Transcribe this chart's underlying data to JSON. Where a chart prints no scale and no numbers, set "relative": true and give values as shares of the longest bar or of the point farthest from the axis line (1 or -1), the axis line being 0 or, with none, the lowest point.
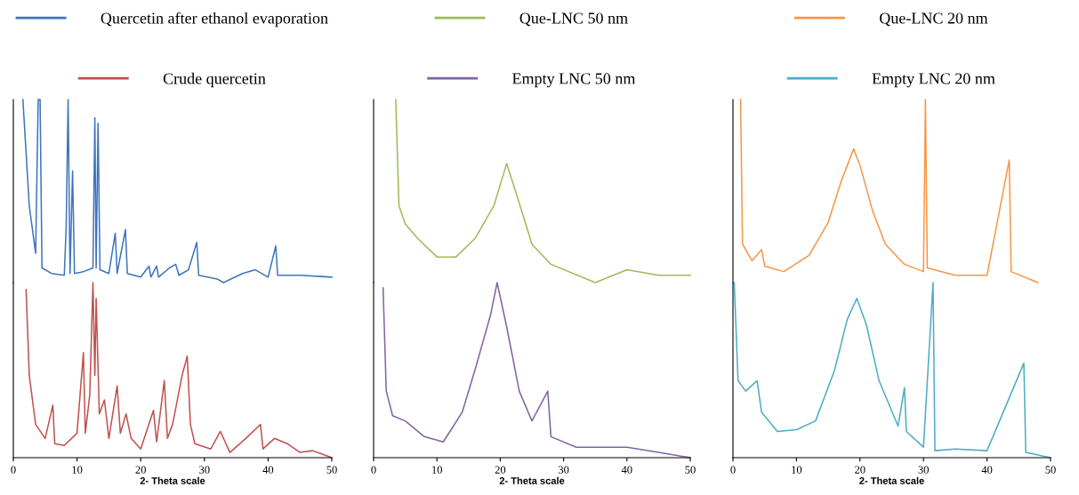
{
  "chart_data": [
    {
      "type": "line",
      "relative": true,
      "xlim": [
        0,
        50
      ],
      "tick_labels": false,
      "legend": "top",
      "grid": false,
      "series": [
        {
          "name": "Quercetin after ethanol evaporation",
          "color": "#3d74bd",
          "x": [
            1.5,
            2.5,
            3.5,
            3.9,
            4.2,
            4.5,
            6,
            8,
            8.3,
            8.6,
            8.9,
            9.3,
            9.6,
            11,
            12.5,
            12.8,
            13.0,
            13.3,
            13.6,
            15,
            16,
            16.3,
            17.6,
            17.9,
            20,
            21.3,
            21.6,
            22.5,
            22.8,
            24.5,
            25.5,
            26,
            27.5,
            28.8,
            29.1,
            32,
            33,
            36,
            38,
            40,
            41.2,
            41.5,
            45,
            50
          ],
          "values": [
            1.0,
            0.42,
            0.16,
            1.0,
            1.0,
            0.08,
            0.05,
            0.04,
            0.31,
            1.0,
            0.05,
            0.61,
            0.05,
            0.06,
            0.08,
            0.9,
            0.08,
            0.87,
            0.07,
            0.05,
            0.27,
            0.05,
            0.29,
            0.05,
            0.03,
            0.09,
            0.03,
            0.09,
            0.03,
            0.08,
            0.1,
            0.04,
            0.07,
            0.22,
            0.04,
            0.02,
            0,
            0.05,
            0.07,
            0.03,
            0.2,
            0.04,
            0.04,
            0.03
          ]
        }
      ]
    },
    {
      "type": "line",
      "relative": true,
      "xlim": [
        0,
        50
      ],
      "xticks": [
        0,
        10,
        20,
        30,
        40,
        50
      ],
      "xlabel": "2- Theta scale",
      "tick_labels": "x",
      "legend": "top",
      "grid": false,
      "series": [
        {
          "name": "Crude quercetin",
          "color": "#c0504d",
          "x": [
            2,
            2.5,
            3.5,
            5,
            6.2,
            6.5,
            8,
            10,
            11,
            11.3,
            12,
            12.5,
            12.8,
            13.0,
            13.5,
            14.3,
            15,
            16.3,
            16.8,
            17.7,
            18.5,
            20,
            22,
            22.5,
            23.7,
            24.2,
            25,
            26.5,
            27.3,
            27.8,
            28.5,
            31,
            32.5,
            34,
            36.5,
            38.8,
            39.2,
            41,
            43,
            45,
            47,
            50
          ],
          "values": [
            0.96,
            0.47,
            0.19,
            0.11,
            0.3,
            0.08,
            0.07,
            0.14,
            0.6,
            0.14,
            0.36,
            1.0,
            0.47,
            0.91,
            0.25,
            0.33,
            0.11,
            0.41,
            0.14,
            0.25,
            0.11,
            0.05,
            0.27,
            0.09,
            0.44,
            0.11,
            0.19,
            0.47,
            0.58,
            0.19,
            0.08,
            0.05,
            0.15,
            0.03,
            0.11,
            0.19,
            0.05,
            0.11,
            0.08,
            0.03,
            0.04,
            0
          ]
        }
      ]
    },
    {
      "type": "line",
      "relative": true,
      "xlim": [
        0,
        50
      ],
      "tick_labels": false,
      "legend": "top",
      "grid": false,
      "series": [
        {
          "name": "Que-LNC 50 nm",
          "color": "#9bbb59",
          "x": [
            3.5,
            4,
            5,
            7,
            10,
            13,
            16,
            19,
            21,
            22.5,
            25,
            28,
            35,
            40,
            45,
            50
          ],
          "values": [
            1.0,
            0.42,
            0.32,
            0.24,
            0.14,
            0.14,
            0.24,
            0.42,
            0.65,
            0.49,
            0.21,
            0.1,
            0,
            0.07,
            0.04,
            0.04
          ]
        }
      ]
    },
    {
      "type": "line",
      "relative": true,
      "xlim": [
        0,
        50
      ],
      "xticks": [
        0,
        10,
        20,
        30,
        40,
        50
      ],
      "xlabel": "2- Theta scale",
      "tick_labels": "x",
      "legend": "top",
      "grid": false,
      "series": [
        {
          "name": "Empty LNC 50 nm",
          "color": "#8064a2",
          "x": [
            1.5,
            2,
            3,
            5,
            8,
            11,
            14,
            16,
            18.5,
            19.5,
            21,
            23,
            25,
            27.5,
            28,
            32,
            40,
            45,
            50
          ],
          "values": [
            0.97,
            0.38,
            0.24,
            0.21,
            0.12,
            0.09,
            0.26,
            0.5,
            0.82,
            1.0,
            0.75,
            0.38,
            0.21,
            0.38,
            0.12,
            0.06,
            0.06,
            0.03,
            0
          ]
        }
      ]
    },
    {
      "type": "line",
      "relative": true,
      "xlim": [
        0,
        50
      ],
      "tick_labels": false,
      "legend": "top",
      "grid": false,
      "series": [
        {
          "name": "Que-LNC 20 nm",
          "color": "#f79646",
          "x": [
            1.2,
            1.5,
            3,
            4.5,
            5,
            8,
            12,
            15,
            17,
            19,
            20,
            22,
            24,
            27,
            30,
            30.3,
            30.6,
            35,
            40,
            43.5,
            43.8,
            48
          ],
          "values": [
            1.0,
            0.21,
            0.12,
            0.18,
            0.09,
            0.06,
            0.15,
            0.33,
            0.55,
            0.73,
            0.64,
            0.39,
            0.21,
            0.1,
            0.06,
            1.0,
            0.08,
            0.04,
            0.04,
            0.67,
            0.06,
            0
          ]
        }
      ]
    },
    {
      "type": "line",
      "relative": true,
      "xlim": [
        0,
        50
      ],
      "xticks": [
        0,
        10,
        20,
        30,
        40,
        50
      ],
      "xlabel": "2- Theta scale",
      "tick_labels": "x",
      "legend": "top",
      "grid": false,
      "series": [
        {
          "name": "Empty LNC 20 nm",
          "color": "#4bacc6",
          "x": [
            0.2,
            0.8,
            2,
            3.8,
            4.5,
            7,
            10,
            13,
            16,
            18,
            19.5,
            21,
            23,
            26,
            27,
            27.3,
            30,
            31.5,
            31.8,
            35,
            40,
            45.8,
            46.1,
            50
          ],
          "values": [
            1.0,
            0.44,
            0.38,
            0.44,
            0.26,
            0.15,
            0.16,
            0.21,
            0.5,
            0.79,
            0.91,
            0.76,
            0.44,
            0.18,
            0.4,
            0.15,
            0.06,
            1.0,
            0.04,
            0.05,
            0.04,
            0.54,
            0.03,
            0
          ]
        }
      ]
    }
  ]
}
